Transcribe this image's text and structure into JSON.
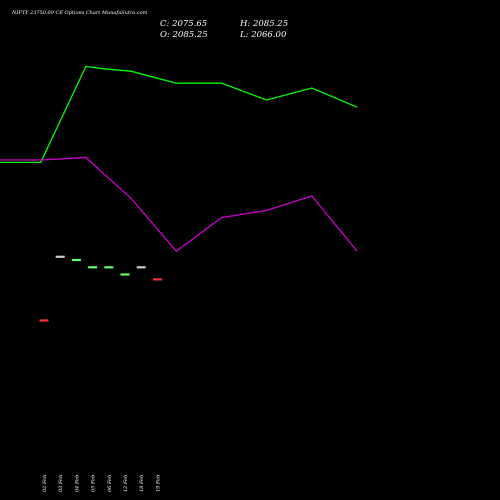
{
  "header": {
    "title": "NIFTY 23750.00  CE Options  Chart MunafaSutra.com",
    "close_label": "C: 2075.65",
    "high_label": "H: 2085.25",
    "open_label": "O: 2085.25",
    "low_label": "L: 2066.00"
  },
  "colors": {
    "background": "#000000",
    "green_line": "#00ff00",
    "magenta_line": "#cc00cc",
    "bull": "#66ff66",
    "bear": "#ff3333",
    "neutral": "#cccccc",
    "text": "#ffffff"
  },
  "chart_data": {
    "type": "line",
    "title": "NIFTY 23750.00  CE Options  Chart MunafaSutra.com",
    "categories": [
      "02 Feb",
      "03 Feb",
      "04 Feb",
      "05 Feb",
      "06 Feb",
      "12 Feb",
      "18 Feb",
      "19 Feb"
    ],
    "series": [
      {
        "role": "upper-line",
        "color": "#00ff00",
        "x": [
          0,
          0.9,
          1.9,
          2.3,
          2.9,
          3.9,
          4.9,
          5.9,
          6.9,
          7.9
        ],
        "values": [
          4.9,
          4.9,
          8.9,
          8.8,
          8.7,
          8.2,
          8.2,
          7.5,
          8.0,
          7.2
        ]
      },
      {
        "role": "lower-line",
        "color": "#cc00cc",
        "x": [
          0,
          0.9,
          1.9,
          2.9,
          3.9,
          4.9,
          5.9,
          6.9,
          7.9
        ],
        "values": [
          5.0,
          5.0,
          5.1,
          3.4,
          1.2,
          2.6,
          2.9,
          3.5,
          1.2
        ]
      },
      {
        "role": "price-ticks",
        "x": [
          0,
          1,
          2,
          3,
          4,
          5,
          6,
          7
        ],
        "values": [
          2024,
          2103,
          2099,
          2090,
          2090,
          2081,
          2090,
          2075
        ],
        "direction": [
          "bear",
          "neutral",
          "bull",
          "bull",
          "bull",
          "bull",
          "neutral",
          "bear"
        ]
      }
    ],
    "price_ylim": [
      1950,
      2120
    ],
    "line_ylim": [
      0,
      10
    ],
    "xlabel": "",
    "ylabel": "",
    "grid": false,
    "legend": "none"
  }
}
